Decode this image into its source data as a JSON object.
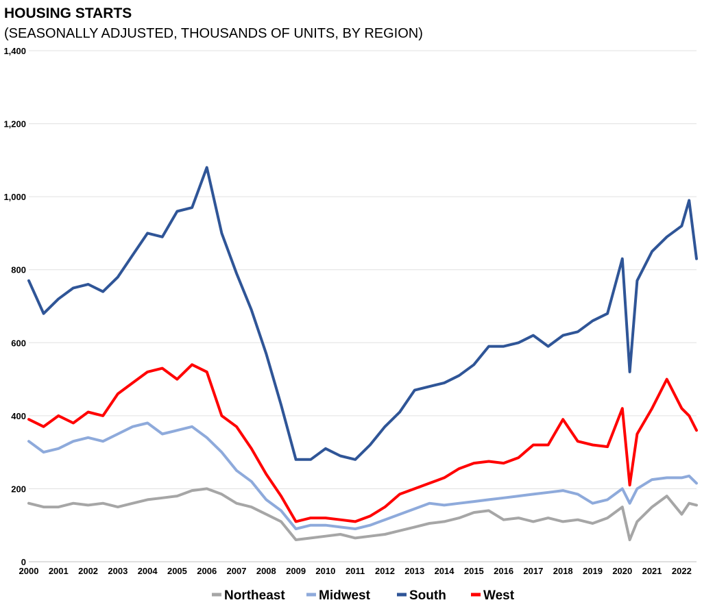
{
  "chart_data": {
    "type": "line",
    "title": "HOUSING STARTS",
    "subtitle": "(SEASONALLY ADJUSTED, THOUSANDS OF UNITS, BY REGION)",
    "xlabel": "",
    "ylabel": "",
    "xlim": [
      2000,
      2022.5
    ],
    "ylim": [
      0,
      1400
    ],
    "yticks": [
      0,
      200,
      400,
      600,
      800,
      1000,
      1200,
      1400
    ],
    "ytick_labels": [
      "0",
      "200",
      "400",
      "600",
      "800",
      "1,000",
      "1,200",
      "1,400"
    ],
    "xticks": [
      2000,
      2001,
      2002,
      2003,
      2004,
      2005,
      2006,
      2007,
      2008,
      2009,
      2010,
      2011,
      2012,
      2013,
      2014,
      2015,
      2016,
      2017,
      2018,
      2019,
      2020,
      2021,
      2022
    ],
    "xtick_labels": [
      "2000",
      "2001",
      "2002",
      "2003",
      "2004",
      "2005",
      "2006",
      "2007",
      "2008",
      "2009",
      "2010",
      "2011",
      "2012",
      "2013",
      "2014",
      "2015",
      "2016",
      "2017",
      "2018",
      "2019",
      "2020",
      "2021",
      "2022"
    ],
    "grid": "horizontal",
    "legend_position": "bottom",
    "series": [
      {
        "name": "Northeast",
        "color": "#a6a6a6",
        "x": [
          2000,
          2000.5,
          2001,
          2001.5,
          2002,
          2002.5,
          2003,
          2003.5,
          2004,
          2004.5,
          2005,
          2005.5,
          2006,
          2006.5,
          2007,
          2007.5,
          2008,
          2008.5,
          2009,
          2009.5,
          2010,
          2010.5,
          2011,
          2011.5,
          2012,
          2012.5,
          2013,
          2013.5,
          2014,
          2014.5,
          2015,
          2015.5,
          2016,
          2016.5,
          2017,
          2017.5,
          2018,
          2018.5,
          2019,
          2019.5,
          2020,
          2020.25,
          2020.5,
          2021,
          2021.5,
          2022,
          2022.25,
          2022.5
        ],
        "values": [
          160,
          150,
          150,
          160,
          155,
          160,
          150,
          160,
          170,
          175,
          180,
          195,
          200,
          185,
          160,
          150,
          130,
          110,
          60,
          65,
          70,
          75,
          65,
          70,
          75,
          85,
          95,
          105,
          110,
          120,
          135,
          140,
          115,
          120,
          110,
          120,
          110,
          115,
          105,
          120,
          150,
          60,
          110,
          150,
          180,
          130,
          160,
          155
        ]
      },
      {
        "name": "Midwest",
        "color": "#8eaadb",
        "x": [
          2000,
          2000.5,
          2001,
          2001.5,
          2002,
          2002.5,
          2003,
          2003.5,
          2004,
          2004.5,
          2005,
          2005.5,
          2006,
          2006.5,
          2007,
          2007.5,
          2008,
          2008.5,
          2009,
          2009.5,
          2010,
          2010.5,
          2011,
          2011.5,
          2012,
          2012.5,
          2013,
          2013.5,
          2014,
          2014.5,
          2015,
          2015.5,
          2016,
          2016.5,
          2017,
          2017.5,
          2018,
          2018.5,
          2019,
          2019.5,
          2020,
          2020.25,
          2020.5,
          2021,
          2021.5,
          2022,
          2022.25,
          2022.5
        ],
        "values": [
          330,
          300,
          310,
          330,
          340,
          330,
          350,
          370,
          380,
          350,
          360,
          370,
          340,
          300,
          250,
          220,
          170,
          140,
          90,
          100,
          100,
          95,
          90,
          100,
          115,
          130,
          145,
          160,
          155,
          160,
          165,
          170,
          175,
          180,
          185,
          190,
          195,
          185,
          160,
          170,
          200,
          160,
          200,
          225,
          230,
          230,
          235,
          215
        ]
      },
      {
        "name": "South",
        "color": "#2f5597",
        "x": [
          2000,
          2000.5,
          2001,
          2001.5,
          2002,
          2002.5,
          2003,
          2003.5,
          2004,
          2004.5,
          2005,
          2005.5,
          2006,
          2006.5,
          2007,
          2007.5,
          2008,
          2008.5,
          2009,
          2009.5,
          2010,
          2010.5,
          2011,
          2011.5,
          2012,
          2012.5,
          2013,
          2013.5,
          2014,
          2014.5,
          2015,
          2015.5,
          2016,
          2016.5,
          2017,
          2017.5,
          2018,
          2018.5,
          2019,
          2019.5,
          2020,
          2020.25,
          2020.5,
          2021,
          2021.5,
          2022,
          2022.25,
          2022.5
        ],
        "values": [
          770,
          680,
          720,
          750,
          760,
          740,
          780,
          840,
          900,
          890,
          960,
          970,
          1080,
          900,
          790,
          690,
          570,
          430,
          280,
          280,
          310,
          290,
          280,
          320,
          370,
          410,
          470,
          480,
          490,
          510,
          540,
          590,
          590,
          600,
          620,
          590,
          620,
          630,
          660,
          680,
          830,
          520,
          770,
          850,
          890,
          920,
          990,
          830
        ]
      },
      {
        "name": "West",
        "color": "#ff0000",
        "x": [
          2000,
          2000.5,
          2001,
          2001.5,
          2002,
          2002.5,
          2003,
          2003.5,
          2004,
          2004.5,
          2005,
          2005.5,
          2006,
          2006.5,
          2007,
          2007.5,
          2008,
          2008.5,
          2009,
          2009.5,
          2010,
          2010.5,
          2011,
          2011.5,
          2012,
          2012.5,
          2013,
          2013.5,
          2014,
          2014.5,
          2015,
          2015.5,
          2016,
          2016.5,
          2017,
          2017.5,
          2018,
          2018.5,
          2019,
          2019.5,
          2020,
          2020.25,
          2020.5,
          2021,
          2021.5,
          2022,
          2022.25,
          2022.5
        ],
        "values": [
          390,
          370,
          400,
          380,
          410,
          400,
          460,
          490,
          520,
          530,
          500,
          540,
          520,
          400,
          370,
          310,
          240,
          180,
          110,
          120,
          120,
          115,
          110,
          125,
          150,
          185,
          200,
          215,
          230,
          255,
          270,
          275,
          270,
          285,
          320,
          320,
          390,
          330,
          320,
          315,
          420,
          210,
          350,
          420,
          500,
          420,
          400,
          360
        ]
      }
    ]
  }
}
